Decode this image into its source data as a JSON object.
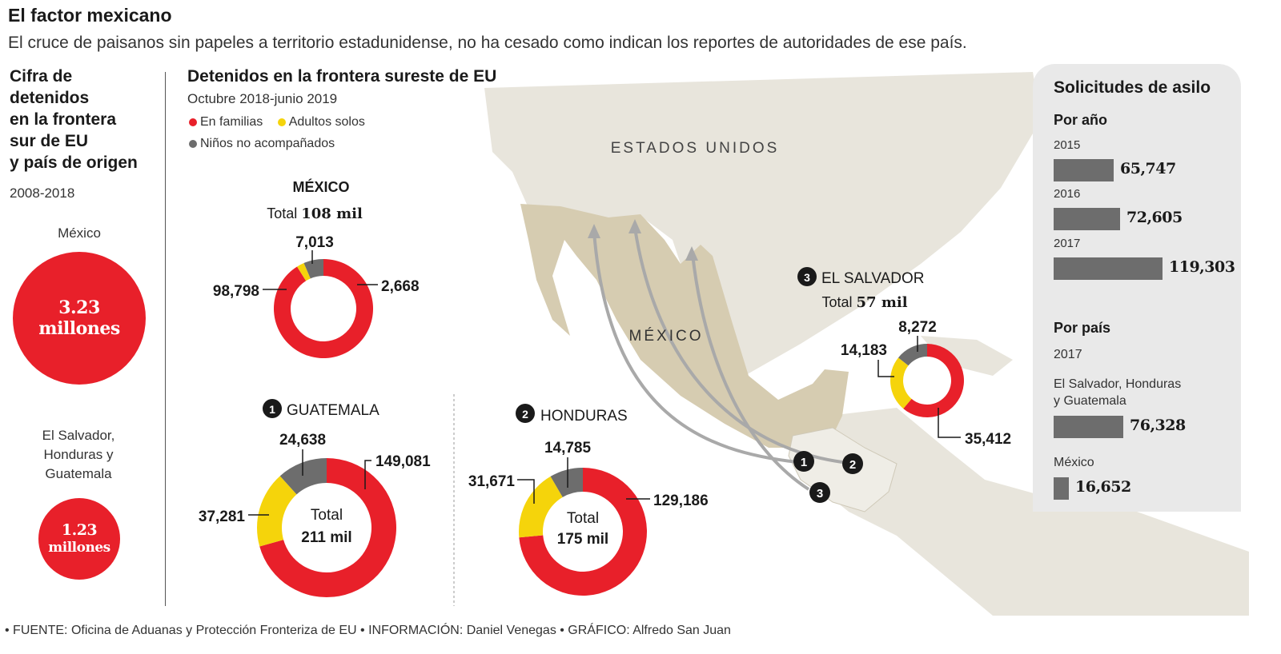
{
  "header": {
    "title": "El factor mexicano",
    "subtitle": "El cruce de paisanos sin papeles a territorio estadunidense, no ha cesado como indican los reportes de autoridades de ese país."
  },
  "left": {
    "heading": "Cifra de detenidos en la frontera sur de EU y país de origen",
    "heading_lines": [
      "Cifra de",
      "detenidos",
      "en la frontera",
      "sur de EU",
      "y país de origen"
    ],
    "period": "2008-2018",
    "items": [
      {
        "label": "México",
        "value_line1": "3.23",
        "value_line2": "millones",
        "value_millions": 3.23
      },
      {
        "label_lines": [
          "El Salvador,",
          "Honduras y",
          "Guatemala"
        ],
        "value_line1": "1.23",
        "value_line2": "millones",
        "value_millions": 1.23
      }
    ],
    "circle_color": "#e8202a"
  },
  "middle": {
    "heading": "Detenidos en la frontera sureste de EU",
    "period": "Octubre 2018-junio 2019",
    "legend": [
      {
        "label": "En familias",
        "color": "#e8202a"
      },
      {
        "label": "Adultos solos",
        "color": "#f5d40b"
      },
      {
        "label": "Niños no acompañados",
        "color": "#6d6d6d"
      }
    ]
  },
  "map": {
    "country_us": "ESTADOS UNIDOS",
    "country_mx": "MÉXICO",
    "route_markers": [
      "1",
      "2",
      "3"
    ]
  },
  "chart_data": [
    {
      "type": "pie",
      "title": "MÉXICO",
      "total_label": "Total",
      "total_value": "108 mil",
      "categories": [
        "En familias",
        "Adultos solos",
        "Niños no acompañados"
      ],
      "values": [
        98798,
        2668,
        7013
      ],
      "value_labels": [
        "98,798",
        "2,668",
        "7,013"
      ]
    },
    {
      "type": "pie",
      "marker": "1",
      "title": "GUATEMALA",
      "total_label": "Total",
      "total_value": "211 mil",
      "categories": [
        "En familias",
        "Adultos solos",
        "Niños no acompañados"
      ],
      "values": [
        149081,
        37281,
        24638
      ],
      "value_labels": [
        "149,081",
        "37,281",
        "24,638"
      ]
    },
    {
      "type": "pie",
      "marker": "2",
      "title": "HONDURAS",
      "total_label": "Total",
      "total_value": "175 mil",
      "categories": [
        "En familias",
        "Adultos solos",
        "Niños no acompañados"
      ],
      "values": [
        129186,
        31671,
        14785
      ],
      "value_labels": [
        "129,186",
        "31,671",
        "14,785"
      ]
    },
    {
      "type": "pie",
      "marker": "3",
      "title": "EL SALVADOR",
      "total_label": "Total",
      "total_value": "57 mil",
      "categories": [
        "En familias",
        "Adultos solos",
        "Niños no acompañados"
      ],
      "values": [
        35412,
        14183,
        8272
      ],
      "value_labels": [
        "35,412",
        "14,183",
        "8,272"
      ]
    },
    {
      "type": "bar",
      "title": "Solicitudes de asilo",
      "subtitle": "Por año",
      "categories": [
        "2015",
        "2016",
        "2017"
      ],
      "values": [
        65747,
        72605,
        119303
      ],
      "value_labels": [
        "65,747",
        "72,605",
        "119,303"
      ]
    },
    {
      "type": "bar",
      "subtitle": "Por país",
      "period": "2017",
      "categories": [
        "El Salvador, Honduras y Guatemala",
        "México"
      ],
      "values": [
        76328,
        16652
      ],
      "value_labels": [
        "76,328",
        "16,652"
      ]
    }
  ],
  "footer": "• FUENTE: Oficina de Aduanas y Protección Fronteriza de EU • INFORMACIÓN: Daniel Venegas • GRÁFICO: Alfredo San Juan"
}
